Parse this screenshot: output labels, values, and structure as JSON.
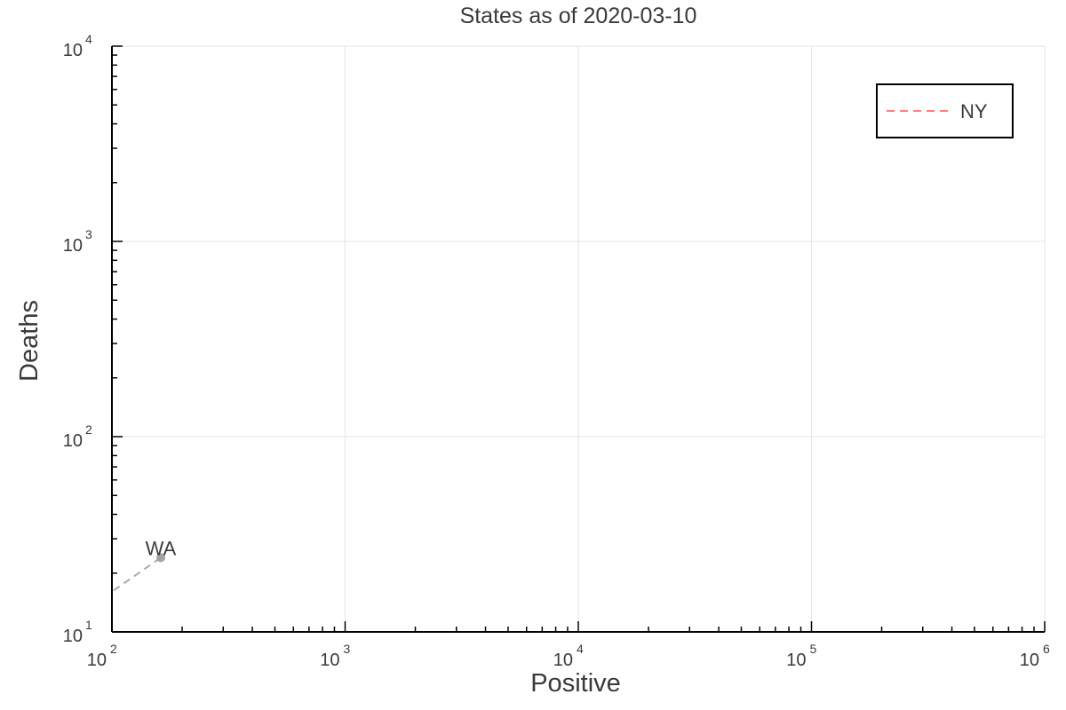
{
  "chart_data": {
    "type": "line",
    "title": "States as of 2020-03-10",
    "xlabel": "Positive",
    "ylabel": "Deaths",
    "xscale": "log",
    "yscale": "log",
    "xlim": [
      100,
      1000000
    ],
    "ylim": [
      10,
      10000
    ],
    "grid": true,
    "legend_position": "top-right",
    "x_ticks": [
      {
        "value": 100,
        "base": "10",
        "exp": "2"
      },
      {
        "value": 1000,
        "base": "10",
        "exp": "3"
      },
      {
        "value": 10000,
        "base": "10",
        "exp": "4"
      },
      {
        "value": 100000,
        "base": "10",
        "exp": "5"
      },
      {
        "value": 1000000,
        "base": "10",
        "exp": "6"
      }
    ],
    "y_ticks": [
      {
        "value": 10,
        "base": "10",
        "exp": "1"
      },
      {
        "value": 100,
        "base": "10",
        "exp": "2"
      },
      {
        "value": 1000,
        "base": "10",
        "exp": "3"
      },
      {
        "value": 10000,
        "base": "10",
        "exp": "4"
      }
    ],
    "series": [
      {
        "label": "WA",
        "color": "#a8a8a8",
        "dashed": true,
        "points": [
          {
            "x": 92,
            "y": 15
          },
          {
            "x": 162,
            "y": 24
          }
        ],
        "marker_point": {
          "x": 162,
          "y": 24
        }
      }
    ],
    "legend": [
      {
        "name": "NY",
        "color": "#ff7f7f",
        "dashed": true
      }
    ]
  }
}
